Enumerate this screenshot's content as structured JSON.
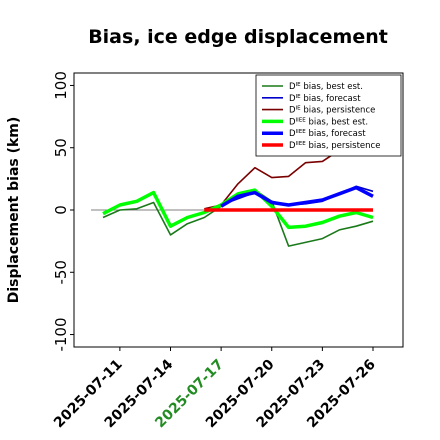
{
  "chart_data": {
    "type": "line",
    "title": "Bias, ice edge displacement",
    "xlabel": "",
    "ylabel": "Displacement bias (km)",
    "ylim": [
      -110,
      110
    ],
    "yticks": [
      -100,
      -50,
      0,
      50,
      100
    ],
    "ytick_labels": [
      "-100",
      "-50",
      "0",
      "50",
      "100"
    ],
    "grid": false,
    "legend_position": "top-right",
    "x_dates": [
      "2025-07-10",
      "2025-07-11",
      "2025-07-12",
      "2025-07-13",
      "2025-07-14",
      "2025-07-15",
      "2025-07-16",
      "2025-07-17",
      "2025-07-18",
      "2025-07-19",
      "2025-07-20",
      "2025-07-21",
      "2025-07-22",
      "2025-07-23",
      "2025-07-24",
      "2025-07-25",
      "2025-07-26"
    ],
    "xticks": [
      {
        "date": "2025-07-11",
        "label": "2025-07-11",
        "color": "#000000"
      },
      {
        "date": "2025-07-14",
        "label": "2025-07-14",
        "color": "#000000"
      },
      {
        "date": "2025-07-17",
        "label": "2025-07-17",
        "color": "#228b22"
      },
      {
        "date": "2025-07-20",
        "label": "2025-07-20",
        "color": "#000000"
      },
      {
        "date": "2025-07-23",
        "label": "2025-07-23",
        "color": "#000000"
      },
      {
        "date": "2025-07-26",
        "label": "2025-07-26",
        "color": "#000000"
      }
    ],
    "series": [
      {
        "name": "D^IE bias, best est.",
        "color": "#1a7a1a",
        "width": 1.6,
        "values": [
          -6,
          0,
          1,
          6,
          -20,
          -11,
          -6,
          3,
          11,
          16,
          7,
          -29,
          -26,
          -23,
          -16,
          -13,
          -9
        ]
      },
      {
        "name": "D^IE bias, forecast",
        "color": "#0000cc",
        "width": 1.6,
        "values": [
          null,
          null,
          null,
          null,
          null,
          null,
          null,
          4,
          9,
          14,
          7,
          4,
          5,
          7,
          13,
          19,
          15
        ]
      },
      {
        "name": "D^IE bias, persistence",
        "color": "#7a0000",
        "width": 1.6,
        "values": [
          null,
          null,
          null,
          null,
          null,
          null,
          1,
          4,
          21,
          34,
          26,
          27,
          38,
          39,
          48,
          49,
          51
        ]
      },
      {
        "name": "D^IIEE bias, best est.",
        "color": "#00ff00",
        "width": 3.5,
        "values": [
          -3,
          4,
          7,
          14,
          -13,
          -6,
          -2,
          4,
          13,
          16,
          3,
          -14,
          -13,
          -10,
          -5,
          -2,
          -6
        ]
      },
      {
        "name": "D^IIEE bias, forecast",
        "color": "#0000ff",
        "width": 3.5,
        "values": [
          null,
          null,
          null,
          null,
          null,
          null,
          null,
          3,
          11,
          14,
          6,
          4,
          6,
          8,
          13,
          18,
          11
        ]
      },
      {
        "name": "D^IIEE bias, persistence",
        "color": "#ff0000",
        "width": 3.5,
        "values": [
          null,
          null,
          null,
          null,
          null,
          null,
          0,
          0,
          0,
          0,
          0,
          0,
          0,
          0,
          0,
          0,
          0
        ]
      }
    ],
    "legend": [
      {
        "base": "D",
        "sup": "IE",
        "rest": " bias, best est.",
        "color": "#1a7a1a",
        "width": 1.6
      },
      {
        "base": "D",
        "sup": "IE",
        "rest": " bias, forecast",
        "color": "#0000cc",
        "width": 1.6
      },
      {
        "base": "D",
        "sup": "IE",
        "rest": " bias, persistence",
        "color": "#7a0000",
        "width": 1.6
      },
      {
        "base": "D",
        "sup": "IIEE",
        "rest": " bias, best est.",
        "color": "#00ff00",
        "width": 3.5
      },
      {
        "base": "D",
        "sup": "IIEE",
        "rest": " bias, forecast",
        "color": "#0000ff",
        "width": 3.5
      },
      {
        "base": "D",
        "sup": "IIEE",
        "rest": " bias, persistence",
        "color": "#ff0000",
        "width": 3.5
      }
    ],
    "reference_line": {
      "y": 0,
      "color": "#808080"
    }
  }
}
